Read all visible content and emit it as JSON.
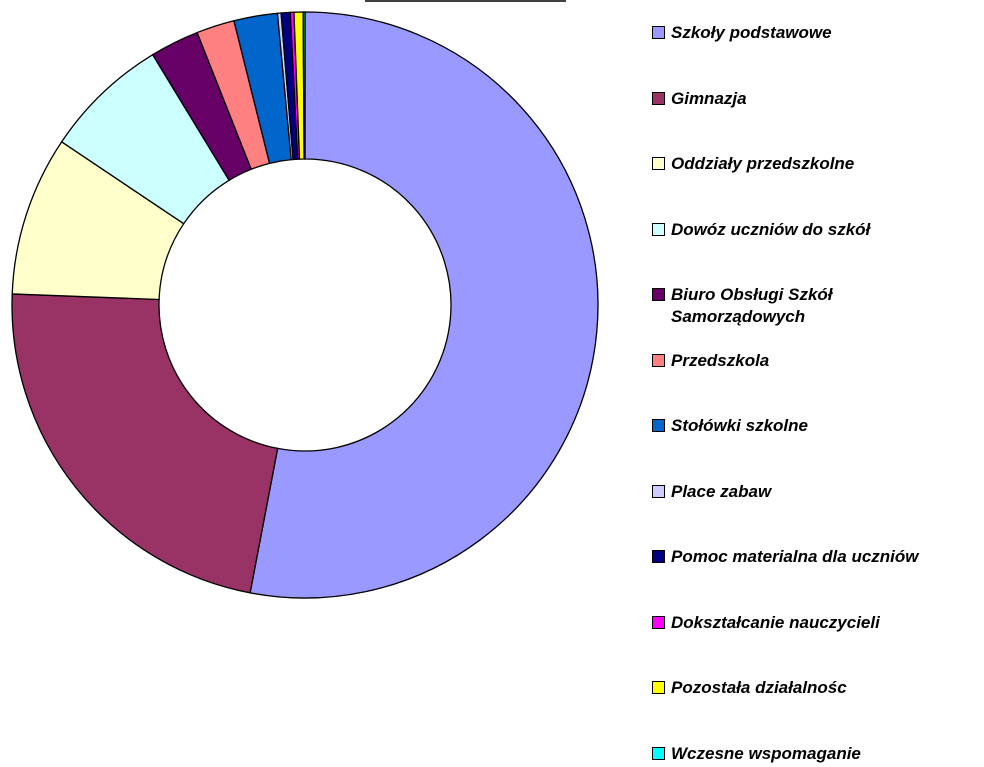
{
  "chart_data": {
    "type": "donut",
    "categories": [
      "Szkoły podstawowe",
      "Gimnazja",
      "Oddziały przedszkolne",
      "Dowóz uczniów do szkół",
      "Biuro Obsługi Szkół Samorządowych",
      "Przedszkola",
      "Stołówki szkolne",
      "Place zabaw",
      "Pomoc materialna dla uczniów",
      "Dokształcanie nauczycieli",
      "Pozostała działalnośc",
      "Wczesne wspomaganie"
    ],
    "values": [
      53.0,
      22.6,
      8.8,
      6.9,
      2.7,
      2.1,
      2.4,
      0.2,
      0.5,
      0.2,
      0.5,
      0.1
    ],
    "colors": [
      "#9999ff",
      "#993366",
      "#ffffcc",
      "#ccffff",
      "#660066",
      "#ff8080",
      "#0066cc",
      "#ccccff",
      "#000080",
      "#ff00ff",
      "#ffff00",
      "#00ffff"
    ],
    "legend": "right"
  }
}
